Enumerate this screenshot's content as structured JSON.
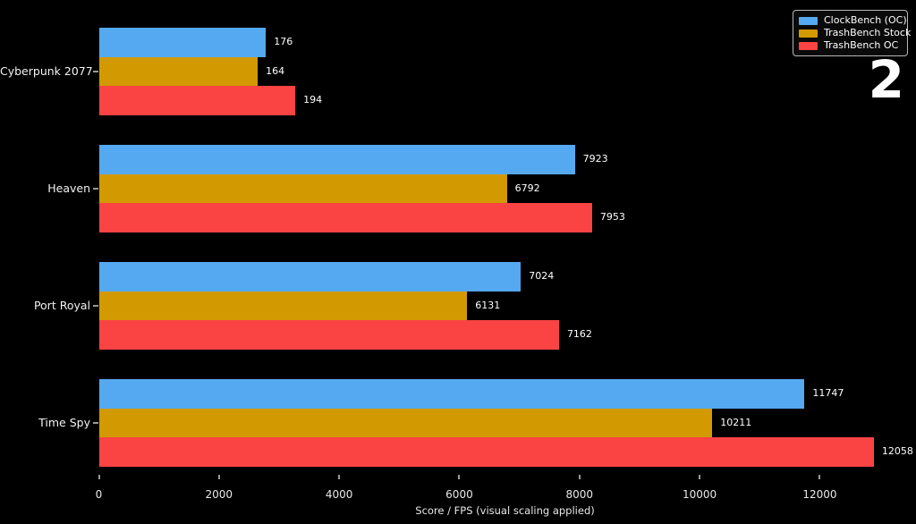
{
  "slide_number": "2",
  "legend": {
    "items": [
      {
        "label": "ClockBench (OC)",
        "color": "#55a9f0"
      },
      {
        "label": "TrashBench Stock",
        "color": "#d29a00"
      },
      {
        "label": "TrashBench OC",
        "color": "#fa4343"
      }
    ]
  },
  "chart_data": {
    "type": "bar",
    "orientation": "horizontal",
    "title": "",
    "xlabel": "Score / FPS (visual scaling applied)",
    "ylabel": "",
    "grid": false,
    "legend_position": "top-right",
    "background": "#000000",
    "xlim": [
      0,
      13520
    ],
    "xticks": [
      0,
      2000,
      4000,
      6000,
      8000,
      10000,
      12000
    ],
    "xtick_labels": [
      "0",
      "2000",
      "4000",
      "6000",
      "8000",
      "10000",
      "12000"
    ],
    "categories": [
      "Cyberpunk 2077",
      "Heaven",
      "Port Royal",
      "Time Spy"
    ],
    "series": [
      {
        "name": "ClockBench (OC)",
        "color": "#55a9f0",
        "values": [
          176,
          7923,
          7024,
          11747
        ],
        "display_units": [
          2780,
          7923,
          7024,
          11747
        ]
      },
      {
        "name": "TrashBench Stock",
        "color": "#d29a00",
        "values": [
          164,
          6792,
          6131,
          10211
        ],
        "display_units": [
          2645,
          6792,
          6131,
          10211
        ]
      },
      {
        "name": "TrashBench OC",
        "color": "#fa4343",
        "values": [
          194,
          7953,
          7162,
          12058
        ],
        "display_units": [
          3270,
          8210,
          7660,
          12900
        ]
      }
    ],
    "note": "visual scaling applied: bar lengths (display_units, in axis units) differ from labeled values"
  }
}
